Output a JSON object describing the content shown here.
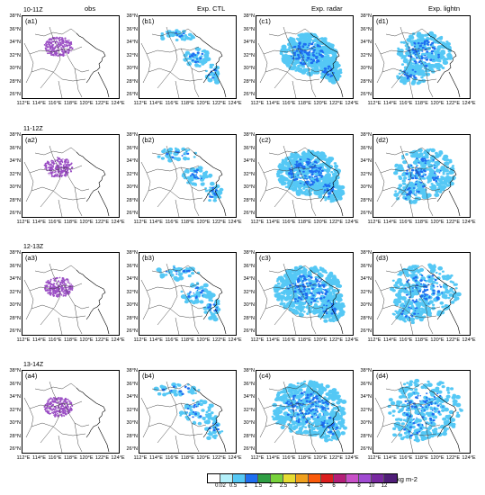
{
  "column_titles": [
    "obs",
    "Exp. CTL",
    "Exp. radar",
    "Exp. lightn"
  ],
  "row_titles": [
    "10-11Z",
    "11-12Z",
    "12-13Z",
    "13-14Z"
  ],
  "panel_labels": [
    [
      "(a1)",
      "(b1)",
      "(c1)",
      "(d1)"
    ],
    [
      "(a2)",
      "(b2)",
      "(c2)",
      "(d2)"
    ],
    [
      "(a3)",
      "(b3)",
      "(c3)",
      "(d3)"
    ],
    [
      "(a4)",
      "(b4)",
      "(c4)",
      "(d4)"
    ]
  ],
  "lat_ticks": [
    "38°N",
    "36°N",
    "34°N",
    "32°N",
    "30°N",
    "28°N",
    "26°N"
  ],
  "lon_ticks": [
    "112°E",
    "114°E",
    "116°E",
    "118°E",
    "120°E",
    "122°E",
    "124°E"
  ],
  "colorbar": {
    "ticks": [
      "0.02",
      "0.5",
      "1",
      "1.5",
      "2",
      "2.5",
      "3",
      "4",
      "5",
      "6",
      "7",
      "8",
      "10",
      "12"
    ],
    "colors": [
      "#ffffff",
      "#b4f0fa",
      "#55c8f5",
      "#1e6ef0",
      "#2f9e44",
      "#78d23c",
      "#e6dc32",
      "#f0a01e",
      "#fa5a0a",
      "#dc1e1e",
      "#b41e78",
      "#c850c8",
      "#a04bd2",
      "#7828a0",
      "#501e78"
    ],
    "unit": "kg m-2"
  },
  "colors": {
    "obs_dots": "#9b4fc4",
    "precip_light": "#55c8f5",
    "precip_mid": "#1e6ef0",
    "boundary": "#333333"
  }
}
